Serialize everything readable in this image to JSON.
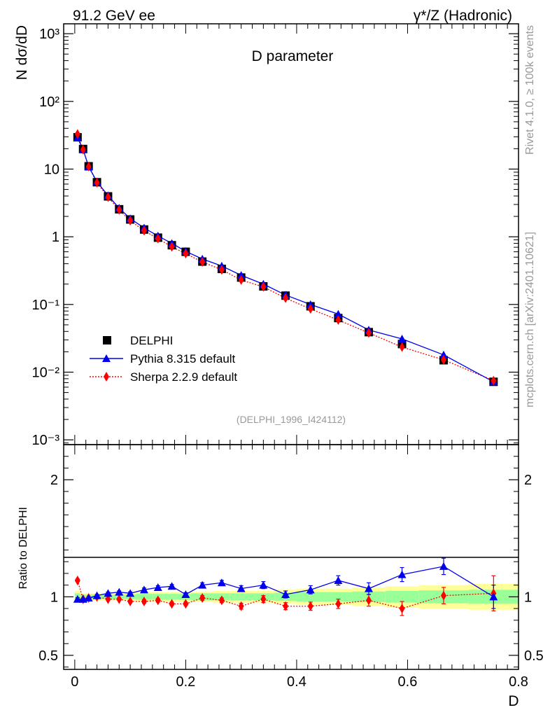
{
  "header": {
    "left": "91.2 GeV ee",
    "right": "γ*/Z (Hadronic)"
  },
  "side_labels": {
    "rivet": "Rivet 4.1.0, ≥ 100k events",
    "mcplots": "mcplots.cern.ch [arXiv:2401.10621]"
  },
  "chart_data": [
    {
      "type": "line",
      "panel": "main",
      "title": "D parameter",
      "ylabel": "N  dσ/dD",
      "xlabel": "D",
      "yscale": "log",
      "xlim": [
        -0.02,
        0.8
      ],
      "ylim": [
        0.00085,
        1400
      ],
      "x_ticks": [
        "0",
        "0.2",
        "0.4",
        "0.6",
        "0.8"
      ],
      "y_ticks": [
        "10⁻³",
        "10⁻²",
        "10⁻¹",
        "1",
        "10",
        "10²",
        "10³"
      ],
      "analysis_tag": "(DELPHI_1996_I424112)",
      "legend_position": "middle-left",
      "series": [
        {
          "name": "DELPHI",
          "style": "data-square",
          "color": "#000000",
          "x": [
            0.005,
            0.015,
            0.025,
            0.04,
            0.06,
            0.08,
            0.1,
            0.125,
            0.15,
            0.175,
            0.2,
            0.23,
            0.265,
            0.3,
            0.34,
            0.38,
            0.425,
            0.475,
            0.53,
            0.59,
            0.665,
            0.755
          ],
          "values": [
            29.5,
            19.8,
            11.0,
            6.4,
            3.95,
            2.55,
            1.8,
            1.28,
            0.97,
            0.75,
            0.6,
            0.43,
            0.335,
            0.25,
            0.185,
            0.135,
            0.094,
            0.063,
            0.039,
            0.026,
            0.015,
            0.0072
          ]
        },
        {
          "name": "Pythia 8.315 default",
          "style": "line-triangle",
          "color": "#0000ee",
          "x": [
            0.005,
            0.015,
            0.025,
            0.04,
            0.06,
            0.08,
            0.1,
            0.125,
            0.15,
            0.175,
            0.2,
            0.23,
            0.265,
            0.3,
            0.34,
            0.38,
            0.425,
            0.475,
            0.53,
            0.59,
            0.665,
            0.755
          ],
          "values": [
            28.9,
            19.4,
            10.9,
            6.5,
            4.06,
            2.65,
            1.86,
            1.35,
            1.03,
            0.8,
            0.61,
            0.47,
            0.37,
            0.27,
            0.2,
            0.138,
            0.1,
            0.072,
            0.042,
            0.031,
            0.018,
            0.0072
          ]
        },
        {
          "name": "Sherpa 2.2.9 default",
          "style": "dotted-diamond",
          "color": "#ff0000",
          "x": [
            0.005,
            0.015,
            0.025,
            0.04,
            0.06,
            0.08,
            0.1,
            0.125,
            0.15,
            0.175,
            0.2,
            0.23,
            0.265,
            0.3,
            0.34,
            0.38,
            0.425,
            0.475,
            0.53,
            0.59,
            0.665,
            0.755
          ],
          "values": [
            33.0,
            19.4,
            10.9,
            6.3,
            3.86,
            2.5,
            1.73,
            1.23,
            0.94,
            0.71,
            0.565,
            0.425,
            0.325,
            0.23,
            0.182,
            0.124,
            0.086,
            0.059,
            0.038,
            0.0235,
            0.0152,
            0.0075
          ]
        }
      ]
    },
    {
      "type": "line",
      "panel": "ratio",
      "ylabel": "Ratio to DELPHI",
      "xlabel": "D",
      "xlim": [
        -0.02,
        0.8
      ],
      "ylim": [
        0.38,
        2.3
      ],
      "y_ticks": [
        "0.5",
        "1",
        "2"
      ],
      "x": [
        0.005,
        0.015,
        0.025,
        0.04,
        0.06,
        0.08,
        0.1,
        0.125,
        0.15,
        0.175,
        0.2,
        0.23,
        0.265,
        0.3,
        0.34,
        0.38,
        0.425,
        0.475,
        0.53,
        0.59,
        0.665,
        0.755
      ],
      "bin_edges": [
        0,
        0.01,
        0.02,
        0.03,
        0.05,
        0.07,
        0.09,
        0.11,
        0.14,
        0.16,
        0.19,
        0.21,
        0.25,
        0.28,
        0.32,
        0.36,
        0.4,
        0.45,
        0.5,
        0.56,
        0.62,
        0.71,
        0.8
      ],
      "band_green": [
        0.03,
        0.02,
        0.02,
        0.02,
        0.02,
        0.02,
        0.02,
        0.025,
        0.025,
        0.025,
        0.025,
        0.03,
        0.03,
        0.03,
        0.03,
        0.035,
        0.04,
        0.04,
        0.045,
        0.05,
        0.055,
        0.06
      ],
      "band_yellow": [
        0.05,
        0.03,
        0.03,
        0.03,
        0.03,
        0.03,
        0.035,
        0.04,
        0.04,
        0.04,
        0.04,
        0.045,
        0.05,
        0.05,
        0.05,
        0.06,
        0.07,
        0.07,
        0.08,
        0.09,
        0.1,
        0.11
      ],
      "series": [
        {
          "name": "Pythia 8.315 default",
          "color": "#0000ee",
          "values": [
            0.98,
            0.98,
            0.99,
            1.01,
            1.03,
            1.04,
            1.03,
            1.06,
            1.08,
            1.09,
            1.02,
            1.1,
            1.12,
            1.07,
            1.1,
            1.02,
            1.06,
            1.14,
            1.07,
            1.19,
            1.26,
            1.0
          ],
          "errors": [
            0.012,
            0.01,
            0.01,
            0.01,
            0.01,
            0.01,
            0.012,
            0.015,
            0.015,
            0.015,
            0.015,
            0.02,
            0.02,
            0.025,
            0.03,
            0.03,
            0.035,
            0.04,
            0.05,
            0.06,
            0.07,
            0.1
          ]
        },
        {
          "name": "Sherpa 2.2.9 default",
          "color": "#ff0000",
          "values": [
            1.14,
            0.98,
            0.99,
            1.0,
            0.98,
            0.98,
            0.96,
            0.96,
            0.97,
            0.94,
            0.94,
            0.99,
            0.97,
            0.92,
            0.98,
            0.92,
            0.92,
            0.94,
            0.97,
            0.9,
            1.01,
            1.03
          ],
          "errors": [
            0.012,
            0.01,
            0.01,
            0.01,
            0.01,
            0.01,
            0.012,
            0.015,
            0.015,
            0.015,
            0.015,
            0.02,
            0.02,
            0.025,
            0.03,
            0.03,
            0.035,
            0.04,
            0.05,
            0.06,
            0.07,
            0.15
          ]
        }
      ]
    }
  ]
}
